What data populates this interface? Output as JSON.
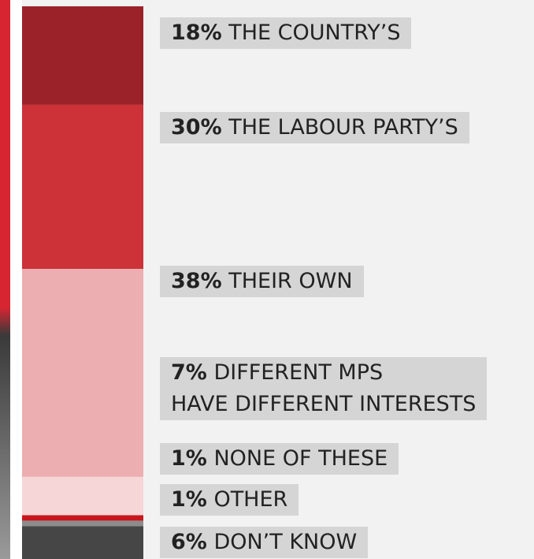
{
  "chart_data": {
    "type": "stacked-bar",
    "categories": [
      "THE COUNTRY’S",
      "THE LABOUR PARTY’S",
      "THEIR OWN",
      "DIFFERENT MPS\nHAVE DIFFERENT INTERESTS",
      "NONE OF THESE",
      "OTHER",
      "DON’T KNOW"
    ],
    "values": [
      18,
      30,
      38,
      7,
      1,
      1,
      6
    ],
    "value_labels": [
      "18%",
      "30%",
      "38%",
      "7%",
      "1%",
      "1%",
      "6%"
    ],
    "colors": [
      "#9b2229",
      "#cc3238",
      "#ecaeb0",
      "#f6d6d7",
      "#c8161d",
      "#8c8c8c",
      "#464646"
    ]
  }
}
